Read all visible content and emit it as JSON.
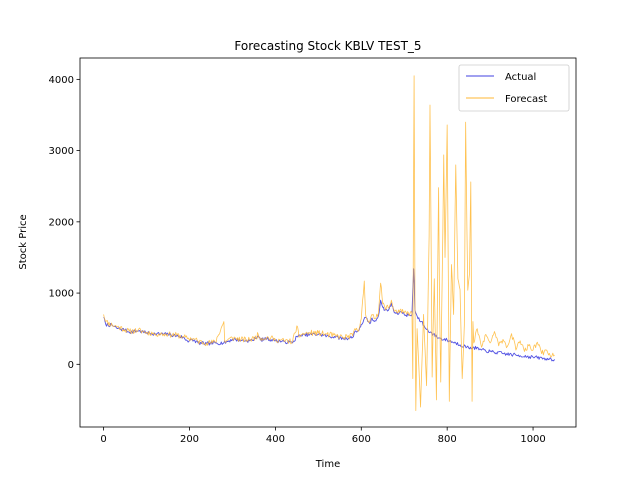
{
  "chart_data": {
    "type": "line",
    "title": "Forecasting Stock KBLV TEST_5",
    "xlabel": "Time",
    "ylabel": "Stock Price",
    "xlim": [
      -55,
      1100
    ],
    "ylim": [
      -880,
      4300
    ],
    "xticks": [
      0,
      200,
      400,
      600,
      800,
      1000
    ],
    "yticks": [
      0,
      1000,
      2000,
      3000,
      4000
    ],
    "grid": false,
    "legend_position": "top-right",
    "series": [
      {
        "name": "Actual",
        "color": "#4040e0",
        "knots": [
          [
            0,
            660
          ],
          [
            5,
            560
          ],
          [
            20,
            545
          ],
          [
            30,
            510
          ],
          [
            50,
            480
          ],
          [
            60,
            450
          ],
          [
            80,
            470
          ],
          [
            100,
            440
          ],
          [
            120,
            430
          ],
          [
            150,
            420
          ],
          [
            170,
            400
          ],
          [
            185,
            380
          ],
          [
            195,
            330
          ],
          [
            210,
            340
          ],
          [
            220,
            300
          ],
          [
            240,
            290
          ],
          [
            260,
            300
          ],
          [
            280,
            300
          ],
          [
            300,
            350
          ],
          [
            320,
            340
          ],
          [
            340,
            330
          ],
          [
            355,
            360
          ],
          [
            360,
            400
          ],
          [
            365,
            340
          ],
          [
            380,
            360
          ],
          [
            400,
            330
          ],
          [
            420,
            320
          ],
          [
            440,
            300
          ],
          [
            450,
            390
          ],
          [
            460,
            400
          ],
          [
            480,
            420
          ],
          [
            500,
            420
          ],
          [
            520,
            400
          ],
          [
            540,
            380
          ],
          [
            560,
            360
          ],
          [
            580,
            380
          ],
          [
            585,
            460
          ],
          [
            595,
            480
          ],
          [
            600,
            560
          ],
          [
            610,
            660
          ],
          [
            615,
            600
          ],
          [
            620,
            570
          ],
          [
            625,
            650
          ],
          [
            630,
            600
          ],
          [
            640,
            680
          ],
          [
            645,
            900
          ],
          [
            650,
            800
          ],
          [
            655,
            760
          ],
          [
            665,
            780
          ],
          [
            670,
            860
          ],
          [
            675,
            760
          ],
          [
            685,
            700
          ],
          [
            690,
            740
          ],
          [
            700,
            700
          ],
          [
            710,
            690
          ],
          [
            718,
            700
          ],
          [
            722,
            1340
          ],
          [
            725,
            760
          ],
          [
            732,
            640
          ],
          [
            740,
            600
          ],
          [
            750,
            500
          ],
          [
            760,
            450
          ],
          [
            780,
            370
          ],
          [
            800,
            340
          ],
          [
            820,
            300
          ],
          [
            850,
            230
          ],
          [
            860,
            240
          ],
          [
            880,
            200
          ],
          [
            900,
            180
          ],
          [
            930,
            150
          ],
          [
            960,
            130
          ],
          [
            1000,
            100
          ],
          [
            1030,
            80
          ],
          [
            1050,
            70
          ]
        ],
        "noise": 25,
        "seed": 7
      },
      {
        "name": "Forecast",
        "color": "#ffb733",
        "knots": [
          [
            0,
            700
          ],
          [
            5,
            600
          ],
          [
            20,
            550
          ],
          [
            30,
            530
          ],
          [
            50,
            490
          ],
          [
            60,
            460
          ],
          [
            80,
            480
          ],
          [
            100,
            450
          ],
          [
            120,
            430
          ],
          [
            150,
            420
          ],
          [
            170,
            410
          ],
          [
            185,
            390
          ],
          [
            195,
            360
          ],
          [
            210,
            360
          ],
          [
            220,
            320
          ],
          [
            240,
            300
          ],
          [
            260,
            310
          ],
          [
            280,
            600
          ],
          [
            282,
            320
          ],
          [
            300,
            370
          ],
          [
            320,
            350
          ],
          [
            340,
            340
          ],
          [
            355,
            380
          ],
          [
            360,
            420
          ],
          [
            365,
            360
          ],
          [
            380,
            380
          ],
          [
            400,
            350
          ],
          [
            420,
            330
          ],
          [
            440,
            320
          ],
          [
            450,
            540
          ],
          [
            455,
            380
          ],
          [
            460,
            420
          ],
          [
            480,
            440
          ],
          [
            500,
            440
          ],
          [
            520,
            420
          ],
          [
            540,
            400
          ],
          [
            560,
            380
          ],
          [
            580,
            400
          ],
          [
            585,
            500
          ],
          [
            595,
            500
          ],
          [
            600,
            640
          ],
          [
            605,
            1000
          ],
          [
            607,
            1170
          ],
          [
            610,
            700
          ],
          [
            615,
            620
          ],
          [
            620,
            600
          ],
          [
            625,
            700
          ],
          [
            630,
            640
          ],
          [
            640,
            720
          ],
          [
            645,
            1140
          ],
          [
            650,
            850
          ],
          [
            655,
            800
          ],
          [
            665,
            800
          ],
          [
            670,
            900
          ],
          [
            675,
            780
          ],
          [
            685,
            720
          ],
          [
            690,
            760
          ],
          [
            700,
            720
          ],
          [
            710,
            720
          ],
          [
            718,
            720
          ],
          [
            720,
            -200
          ],
          [
            722,
            2900
          ],
          [
            723,
            4050
          ],
          [
            725,
            900
          ],
          [
            727,
            -650
          ],
          [
            730,
            500
          ],
          [
            738,
            -600
          ],
          [
            745,
            700
          ],
          [
            752,
            -300
          ],
          [
            758,
            1800
          ],
          [
            760,
            3640
          ],
          [
            762,
            2200
          ],
          [
            765,
            -180
          ],
          [
            770,
            1200
          ],
          [
            775,
            -500
          ],
          [
            780,
            2480
          ],
          [
            782,
            1000
          ],
          [
            785,
            -250
          ],
          [
            790,
            1900
          ],
          [
            792,
            2940
          ],
          [
            795,
            1500
          ],
          [
            800,
            3360
          ],
          [
            805,
            -520
          ],
          [
            810,
            1400
          ],
          [
            815,
            700
          ],
          [
            820,
            2800
          ],
          [
            825,
            1200
          ],
          [
            830,
            1050
          ],
          [
            835,
            -200
          ],
          [
            840,
            550
          ],
          [
            843,
            3400
          ],
          [
            846,
            1900
          ],
          [
            848,
            1040
          ],
          [
            852,
            1270
          ],
          [
            855,
            2560
          ],
          [
            858,
            -520
          ],
          [
            860,
            600
          ],
          [
            862,
            300
          ],
          [
            870,
            500
          ],
          [
            880,
            240
          ],
          [
            890,
            420
          ],
          [
            900,
            300
          ],
          [
            910,
            460
          ],
          [
            920,
            260
          ],
          [
            930,
            350
          ],
          [
            940,
            250
          ],
          [
            950,
            430
          ],
          [
            960,
            200
          ],
          [
            970,
            330
          ],
          [
            980,
            180
          ],
          [
            990,
            260
          ],
          [
            1000,
            200
          ],
          [
            1010,
            310
          ],
          [
            1020,
            150
          ],
          [
            1030,
            200
          ],
          [
            1040,
            120
          ],
          [
            1050,
            130
          ]
        ],
        "noise": 40,
        "seed": 11
      }
    ]
  }
}
